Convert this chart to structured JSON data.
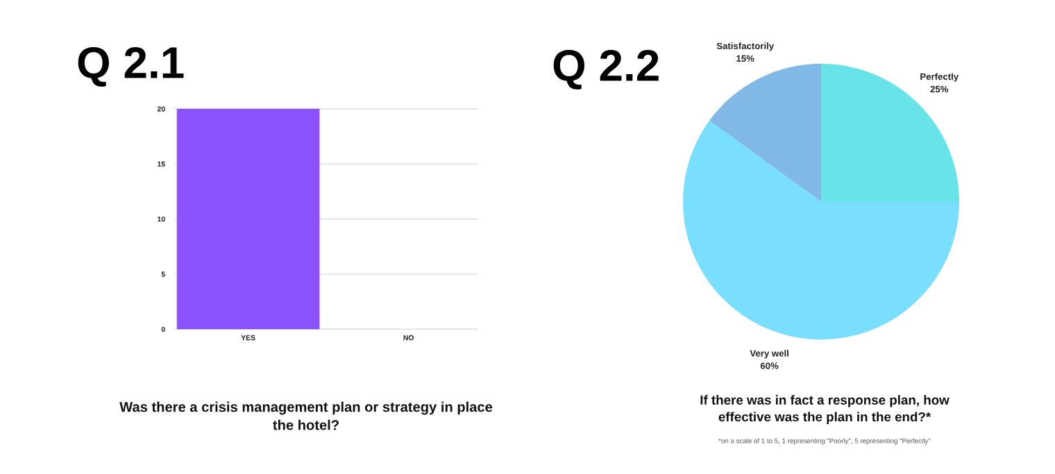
{
  "chart_data": [
    {
      "type": "bar",
      "title": "Q 2.1",
      "categories": [
        "YES",
        "NO"
      ],
      "values": [
        20,
        0
      ],
      "color": "#8c52ff",
      "ylim": [
        0,
        20
      ],
      "yticks": [
        0,
        5,
        10,
        15,
        20
      ],
      "grid": "y",
      "annotations": [
        "Was there a crisis management plan or strategy in place\nthe hotel?"
      ]
    },
    {
      "type": "pie",
      "title": "Q 2.2",
      "categories": [
        "Perfectly",
        "Very well",
        "Satisfactorily"
      ],
      "values": [
        25,
        60,
        15
      ],
      "colors": [
        "#68e3e8",
        "#7adfff",
        "#80b8e6"
      ],
      "value_labels": [
        "25%",
        "60%",
        "15%"
      ],
      "annotations": [
        "If there was in fact a response plan, how\neffective was the plan in the end?*",
        "*on a scale of 1 to 5, 1 representing \"Poorly\", 5 representing \"Perfectly\""
      ]
    }
  ]
}
